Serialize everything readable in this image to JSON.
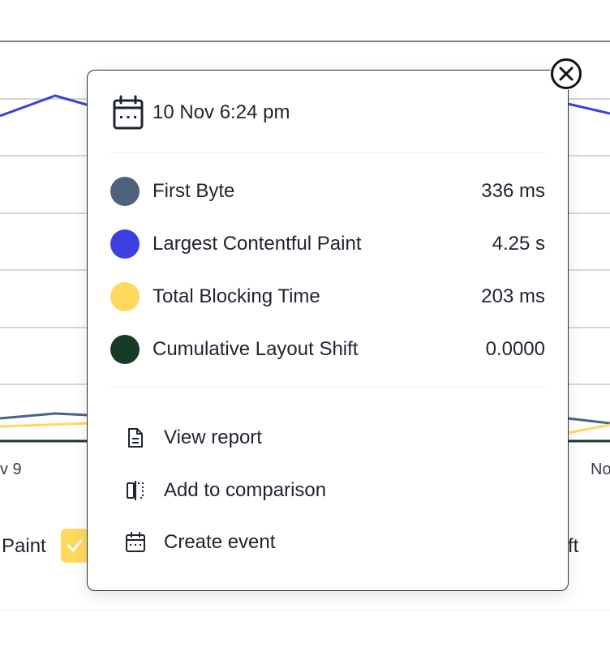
{
  "background_chart": {
    "x_tick_left": "v 9",
    "x_tick_right": "No",
    "legend_left_text": "Paint",
    "legend_right_text": "ft",
    "colors": {
      "first_byte": "#4e627e",
      "lcp": "#3a41e0",
      "tbt": "#ffd95e",
      "cls": "#183a26",
      "grid": "#dcdfe5"
    }
  },
  "popover": {
    "date": "10 Nov 6:24 pm",
    "date_icon": "calendar-icon",
    "close_icon": "close-circle-icon",
    "metrics": [
      {
        "name": "First Byte",
        "value": "336 ms",
        "color": "#4e627e"
      },
      {
        "name": "Largest Contentful Paint",
        "value": "4.25 s",
        "color": "#3a41e0"
      },
      {
        "name": "Total Blocking Time",
        "value": "203 ms",
        "color": "#ffd95e"
      },
      {
        "name": "Cumulative Layout Shift",
        "value": "0.0000",
        "color": "#183a26"
      }
    ],
    "actions": [
      {
        "label": "View report",
        "icon": "document-icon"
      },
      {
        "label": "Add to comparison",
        "icon": "compare-icon"
      },
      {
        "label": "Create event",
        "icon": "calendar-icon"
      }
    ]
  }
}
